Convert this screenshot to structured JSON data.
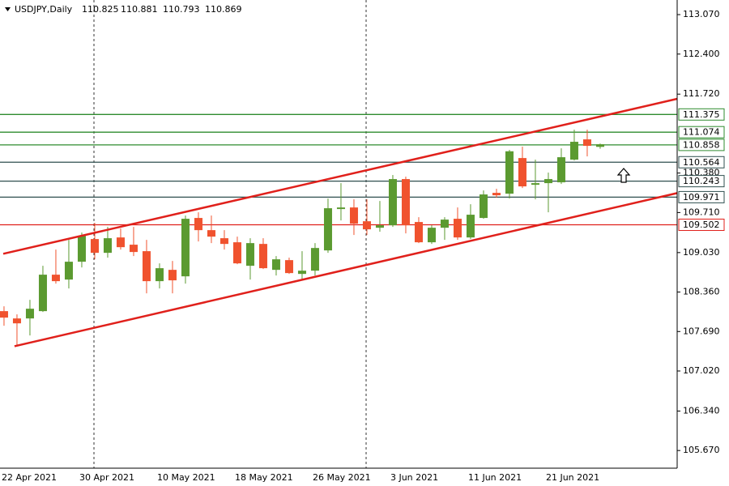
{
  "chart_data": {
    "type": "candlestick",
    "title": "USDJPY,Daily",
    "categories": [
      "22 Apr 2021",
      null,
      null,
      null,
      null,
      null,
      "30 Apr 2021",
      null,
      null,
      null,
      null,
      null,
      "10 May 2021",
      null,
      null,
      null,
      null,
      null,
      "18 May 2021",
      null,
      null,
      null,
      null,
      null,
      "26 May 2021",
      null,
      null,
      null,
      null,
      null,
      "3 Jun 2021",
      null,
      null,
      null,
      null,
      null,
      "11 Jun 2021",
      null,
      null,
      null,
      null,
      null,
      "21 Jun 2021",
      null,
      null,
      null,
      null
    ],
    "open": [
      108.036,
      107.912,
      107.912,
      108.036,
      108.655,
      108.572,
      108.875,
      109.26,
      109.026,
      109.287,
      109.164,
      109.054,
      108.545,
      108.737,
      108.627,
      109.618,
      109.411,
      109.274,
      109.205,
      108.806,
      109.177,
      108.737,
      108.902,
      108.668,
      108.723,
      109.067,
      109.769,
      109.796,
      109.562,
      109.452,
      109.494,
      110.278,
      109.549,
      109.205,
      109.452,
      109.604,
      109.287,
      109.618,
      110.044,
      110.03,
      110.635,
      110.181,
      110.209,
      110.223,
      110.608,
      110.952,
      110.825
    ],
    "high": [
      108.118,
      107.981,
      108.228,
      108.806,
      109.081,
      109.246,
      109.37,
      109.535,
      109.466,
      109.439,
      109.466,
      109.246,
      108.847,
      108.888,
      109.659,
      109.714,
      109.659,
      109.411,
      109.301,
      109.274,
      109.274,
      108.971,
      108.944,
      109.054,
      109.191,
      109.948,
      110.209,
      109.934,
      109.934,
      109.906,
      110.347,
      110.319,
      109.631,
      109.494,
      109.631,
      109.796,
      109.851,
      110.085,
      110.113,
      110.773,
      110.828,
      110.608,
      110.388,
      110.8,
      111.117,
      111.117,
      110.881
    ],
    "low": [
      107.788,
      107.458,
      107.623,
      108.022,
      108.503,
      108.421,
      108.778,
      108.916,
      108.944,
      109.081,
      108.971,
      108.338,
      108.421,
      108.338,
      108.503,
      109.219,
      109.191,
      109.081,
      108.833,
      108.572,
      108.751,
      108.641,
      108.668,
      108.559,
      108.641,
      109.026,
      109.576,
      109.329,
      109.329,
      109.384,
      109.466,
      109.356,
      109.191,
      109.177,
      109.246,
      109.246,
      109.26,
      109.604,
      109.961,
      109.948,
      110.126,
      109.934,
      109.714,
      110.195,
      110.594,
      110.663,
      110.793
    ],
    "close": [
      107.926,
      107.829,
      108.077,
      108.655,
      108.545,
      108.875,
      109.315,
      109.026,
      109.274,
      109.122,
      109.04,
      108.545,
      108.765,
      108.559,
      109.604,
      109.411,
      109.301,
      109.177,
      108.847,
      109.191,
      108.765,
      108.916,
      108.682,
      108.723,
      109.108,
      109.783,
      109.796,
      109.521,
      109.425,
      109.494,
      110.278,
      109.494,
      109.205,
      109.452,
      109.59,
      109.287,
      109.673,
      110.017,
      110.003,
      110.75,
      110.154,
      110.209,
      110.278,
      110.649,
      110.911,
      110.842,
      110.869
    ],
    "up_color": "#5b9a30",
    "down_color": "#f0522e",
    "xlim": [
      -0.31,
      51.94
    ],
    "ylim": [
      105.37,
      113.318
    ],
    "yticks": [
      {
        "value": 113.07,
        "label": "113.070"
      },
      {
        "value": 112.4,
        "label": "112.400"
      },
      {
        "value": 111.72,
        "label": "111.720"
      },
      {
        "value": 110.38,
        "label": "110.380"
      },
      {
        "value": 109.71,
        "label": "109.710"
      },
      {
        "value": 109.03,
        "label": "109.030"
      },
      {
        "value": 108.36,
        "label": "108.360"
      },
      {
        "value": 107.69,
        "label": "107.690"
      },
      {
        "value": 107.02,
        "label": "107.020"
      },
      {
        "value": 106.34,
        "label": "106.340"
      },
      {
        "value": 105.67,
        "label": "105.670"
      }
    ],
    "levels": [
      {
        "value": 111.375,
        "color": "#2e8b2e"
      },
      {
        "value": 111.074,
        "color": "#2e8b2e"
      },
      {
        "value": 110.858,
        "color": "#2e8b2e"
      },
      {
        "value": 110.564,
        "color": "#2f4f4f"
      },
      {
        "value": 110.243,
        "color": "#2f4f4f"
      },
      {
        "value": 109.971,
        "color": "#2f4f4f"
      },
      {
        "value": 109.502,
        "color": "#e0201b"
      }
    ],
    "trendlines": [
      {
        "x": [
          -0.06,
          51.94
        ],
        "y": [
          109.01,
          111.64
        ],
        "color": "#e0201b"
      },
      {
        "x": [
          0.81,
          51.94
        ],
        "y": [
          107.44,
          110.04
        ],
        "color": "#e0201b"
      }
    ]
  }
}
